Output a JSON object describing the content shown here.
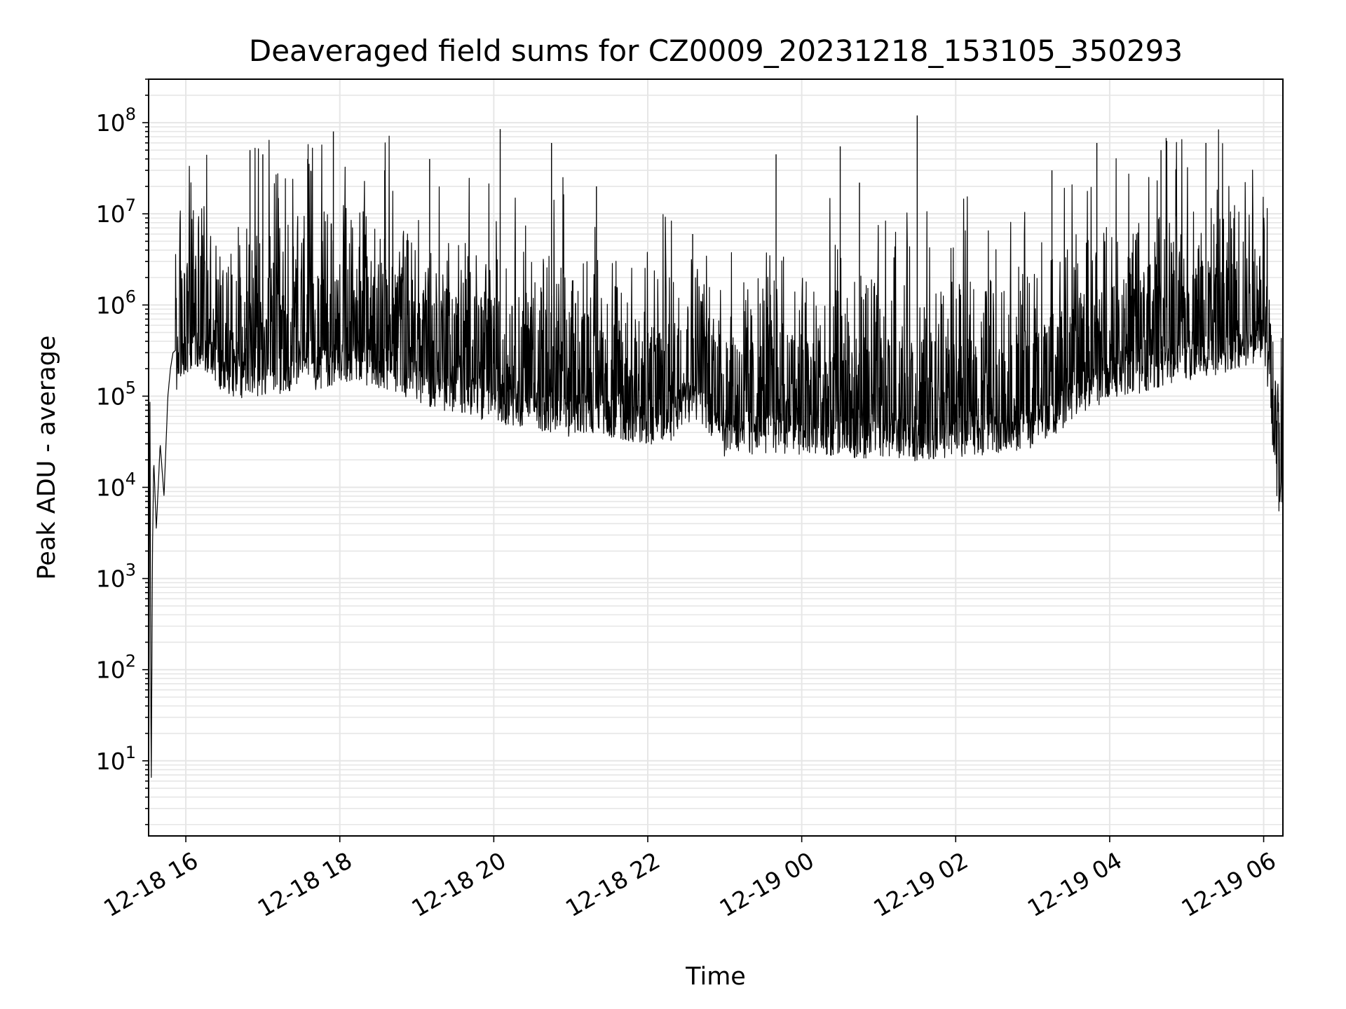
{
  "chart_data": {
    "type": "line",
    "title": "Deaveraged field sums for CZ0009_20231218_153105_350293",
    "xlabel": "Time",
    "ylabel": "Peak ADU - average",
    "xscale": "time",
    "yscale": "log",
    "xlim": [
      "2023-12-18 15:31",
      "2023-12-19 06:15"
    ],
    "ylim": [
      1.5,
      300000000
    ],
    "grid": true,
    "legend": "none",
    "line_color": "#000000",
    "grid_color": "#e6e6e6",
    "x_ticks": [
      {
        "value": "2023-12-18 16:00",
        "label": "12-18 16"
      },
      {
        "value": "2023-12-18 18:00",
        "label": "12-18 18"
      },
      {
        "value": "2023-12-18 20:00",
        "label": "12-18 20"
      },
      {
        "value": "2023-12-18 22:00",
        "label": "12-18 22"
      },
      {
        "value": "2023-12-19 00:00",
        "label": "12-19 00"
      },
      {
        "value": "2023-12-19 02:00",
        "label": "12-19 02"
      },
      {
        "value": "2023-12-19 04:00",
        "label": "12-19 04"
      },
      {
        "value": "2023-12-19 06:00",
        "label": "12-19 06"
      }
    ],
    "y_ticks": [
      {
        "value": 10,
        "base": "10",
        "exp": "1"
      },
      {
        "value": 100,
        "base": "10",
        "exp": "2"
      },
      {
        "value": 1000,
        "base": "10",
        "exp": "3"
      },
      {
        "value": 10000,
        "base": "10",
        "exp": "4"
      },
      {
        "value": 100000,
        "base": "10",
        "exp": "5"
      },
      {
        "value": 1000000,
        "base": "10",
        "exp": "6"
      },
      {
        "value": 10000000,
        "base": "10",
        "exp": "7"
      },
      {
        "value": 100000000,
        "base": "10",
        "exp": "8"
      }
    ],
    "series": [
      {
        "x": [
          "2023-12-18 15:31",
          "2023-12-18 15:32",
          "2023-12-18 15:33",
          "2023-12-18 15:34",
          "2023-12-18 15:35",
          "2023-12-18 15:37",
          "2023-12-18 15:40",
          "2023-12-18 15:43",
          "2023-12-18 15:46",
          "2023-12-18 15:48",
          "2023-12-18 15:50",
          "2023-12-18 15:55",
          "2023-12-18 16:00",
          "2023-12-18 16:10",
          "2023-12-18 16:20",
          "2023-12-18 16:30",
          "2023-12-18 16:45",
          "2023-12-18 17:00",
          "2023-12-18 17:15",
          "2023-12-18 17:30",
          "2023-12-18 17:45",
          "2023-12-18 18:00",
          "2023-12-18 18:15",
          "2023-12-18 18:30",
          "2023-12-18 18:45",
          "2023-12-18 19:00",
          "2023-12-18 19:15",
          "2023-12-18 19:30",
          "2023-12-18 19:45",
          "2023-12-18 20:00",
          "2023-12-18 20:15",
          "2023-12-18 20:30",
          "2023-12-18 20:45",
          "2023-12-18 21:00",
          "2023-12-18 21:15",
          "2023-12-18 21:30",
          "2023-12-18 21:45",
          "2023-12-18 22:00",
          "2023-12-18 22:15",
          "2023-12-18 22:30",
          "2023-12-18 22:45",
          "2023-12-18 23:00",
          "2023-12-18 23:15",
          "2023-12-18 23:30",
          "2023-12-18 23:45",
          "2023-12-19 00:00",
          "2023-12-19 00:30",
          "2023-12-19 01:00",
          "2023-12-19 01:30",
          "2023-12-19 02:00",
          "2023-12-19 02:30",
          "2023-12-19 03:00",
          "2023-12-19 03:15",
          "2023-12-19 03:30",
          "2023-12-19 03:45",
          "2023-12-19 04:00",
          "2023-12-19 04:15",
          "2023-12-19 04:30",
          "2023-12-19 04:45",
          "2023-12-19 05:00",
          "2023-12-19 05:15",
          "2023-12-19 05:30",
          "2023-12-19 05:45",
          "2023-12-19 06:00",
          "2023-12-19 06:03",
          "2023-12-19 06:06",
          "2023-12-19 06:09",
          "2023-12-19 06:12",
          "2023-12-19 06:15"
        ],
        "y": [
          2,
          130000,
          4,
          2000,
          20000,
          3500,
          30000,
          8000,
          100000,
          200000,
          300000,
          350000,
          500000,
          600000,
          400000,
          300000,
          250000,
          280000,
          300000,
          350000,
          320000,
          400000,
          380000,
          350000,
          300000,
          250000,
          200000,
          180000,
          160000,
          150000,
          130000,
          120000,
          110000,
          100000,
          110000,
          100000,
          90000,
          80000,
          80000,
          150000,
          120000,
          60000,
          60000,
          65000,
          65000,
          65000,
          60000,
          55000,
          55000,
          60000,
          65000,
          75000,
          100000,
          150000,
          200000,
          250000,
          300000,
          300000,
          350000,
          400000,
          450000,
          500000,
          600000,
          700000,
          300000,
          80000,
          30000,
          15000,
          10000
        ],
        "spikes": [
          {
            "x": "2023-12-18 16:50",
            "y": 50000000
          },
          {
            "x": "2023-12-18 17:00",
            "y": 45000000
          },
          {
            "x": "2023-12-18 17:35",
            "y": 40000000
          },
          {
            "x": "2023-12-18 17:55",
            "y": 80000000
          },
          {
            "x": "2023-12-18 18:35",
            "y": 30000000
          },
          {
            "x": "2023-12-18 19:10",
            "y": 40000000
          },
          {
            "x": "2023-12-18 20:05",
            "y": 85000000
          },
          {
            "x": "2023-12-18 20:45",
            "y": 60000000
          },
          {
            "x": "2023-12-18 21:20",
            "y": 20000000
          },
          {
            "x": "2023-12-18 22:35",
            "y": 6000000
          },
          {
            "x": "2023-12-18 23:40",
            "y": 45000000
          },
          {
            "x": "2023-12-19 00:30",
            "y": 55000000
          },
          {
            "x": "2023-12-19 00:45",
            "y": 22000000
          },
          {
            "x": "2023-12-19 01:30",
            "y": 120000000
          },
          {
            "x": "2023-12-19 03:15",
            "y": 30000000
          },
          {
            "x": "2023-12-19 03:50",
            "y": 60000000
          },
          {
            "x": "2023-12-19 04:40",
            "y": 50000000
          },
          {
            "x": "2023-12-19 05:15",
            "y": 60000000
          }
        ]
      }
    ]
  }
}
